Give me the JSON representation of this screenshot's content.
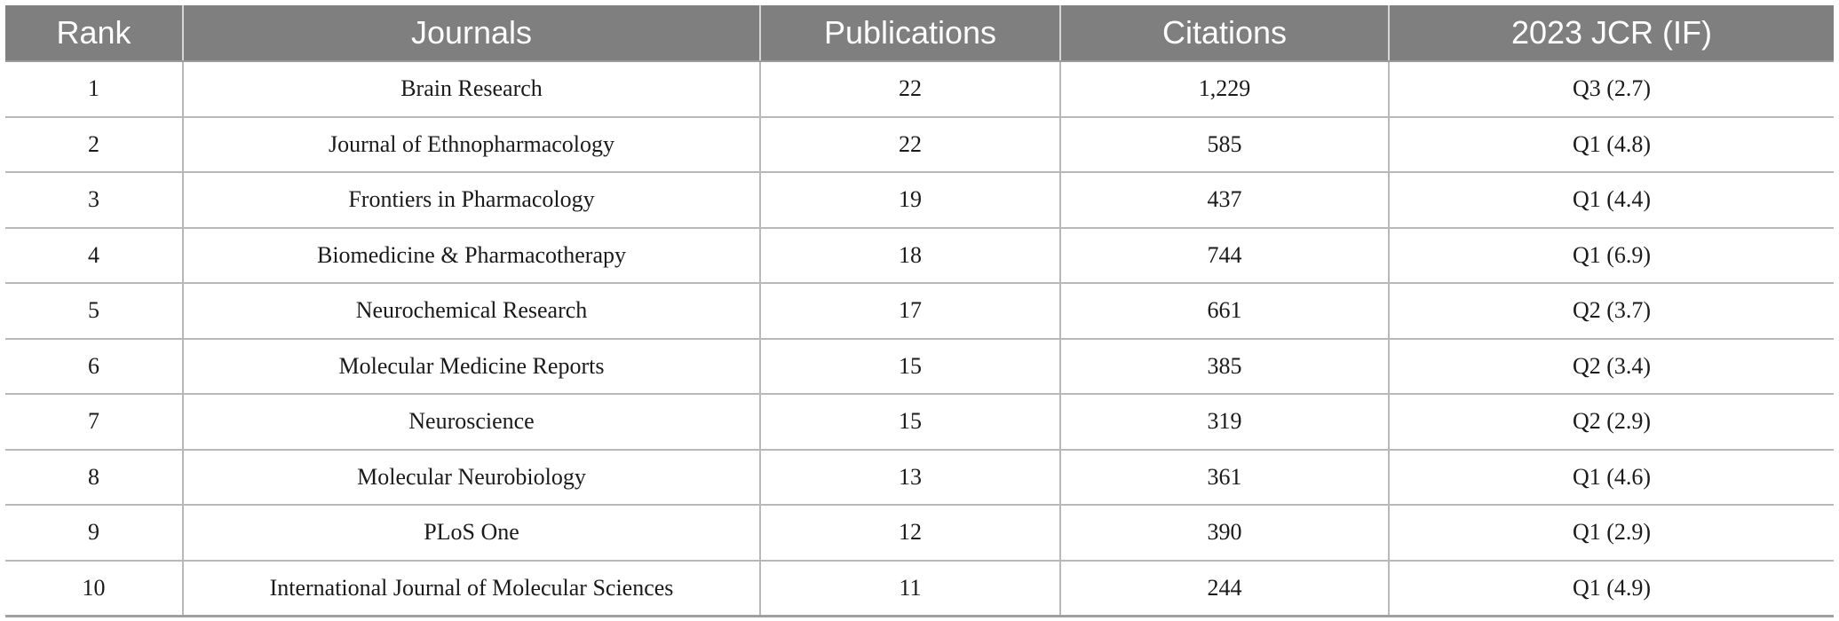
{
  "table": {
    "headers": [
      "Rank",
      "Journals",
      "Publications",
      "Citations",
      "2023 JCR (IF)"
    ],
    "rows": [
      [
        "1",
        "Brain Research",
        "22",
        "1,229",
        "Q3 (2.7)"
      ],
      [
        "2",
        "Journal of Ethnopharmacology",
        "22",
        "585",
        "Q1 (4.8)"
      ],
      [
        "3",
        "Frontiers in Pharmacology",
        "19",
        "437",
        "Q1 (4.4)"
      ],
      [
        "4",
        "Biomedicine & Pharmacotherapy",
        "18",
        "744",
        "Q1 (6.9)"
      ],
      [
        "5",
        "Neurochemical Research",
        "17",
        "661",
        "Q2 (3.7)"
      ],
      [
        "6",
        "Molecular Medicine Reports",
        "15",
        "385",
        "Q2 (3.4)"
      ],
      [
        "7",
        "Neuroscience",
        "15",
        "319",
        "Q2 (2.9)"
      ],
      [
        "8",
        "Molecular Neurobiology",
        "13",
        "361",
        "Q1 (4.6)"
      ],
      [
        "9",
        "PLoS One",
        "12",
        "390",
        "Q1 (2.9)"
      ],
      [
        "10",
        "International Journal of Molecular Sciences",
        "11",
        "244",
        "Q1 (4.9)"
      ]
    ]
  },
  "colors": {
    "header_background": "#7f7f7f",
    "header_text": "#ffffff",
    "grid_lines": "#b8b8b8"
  }
}
